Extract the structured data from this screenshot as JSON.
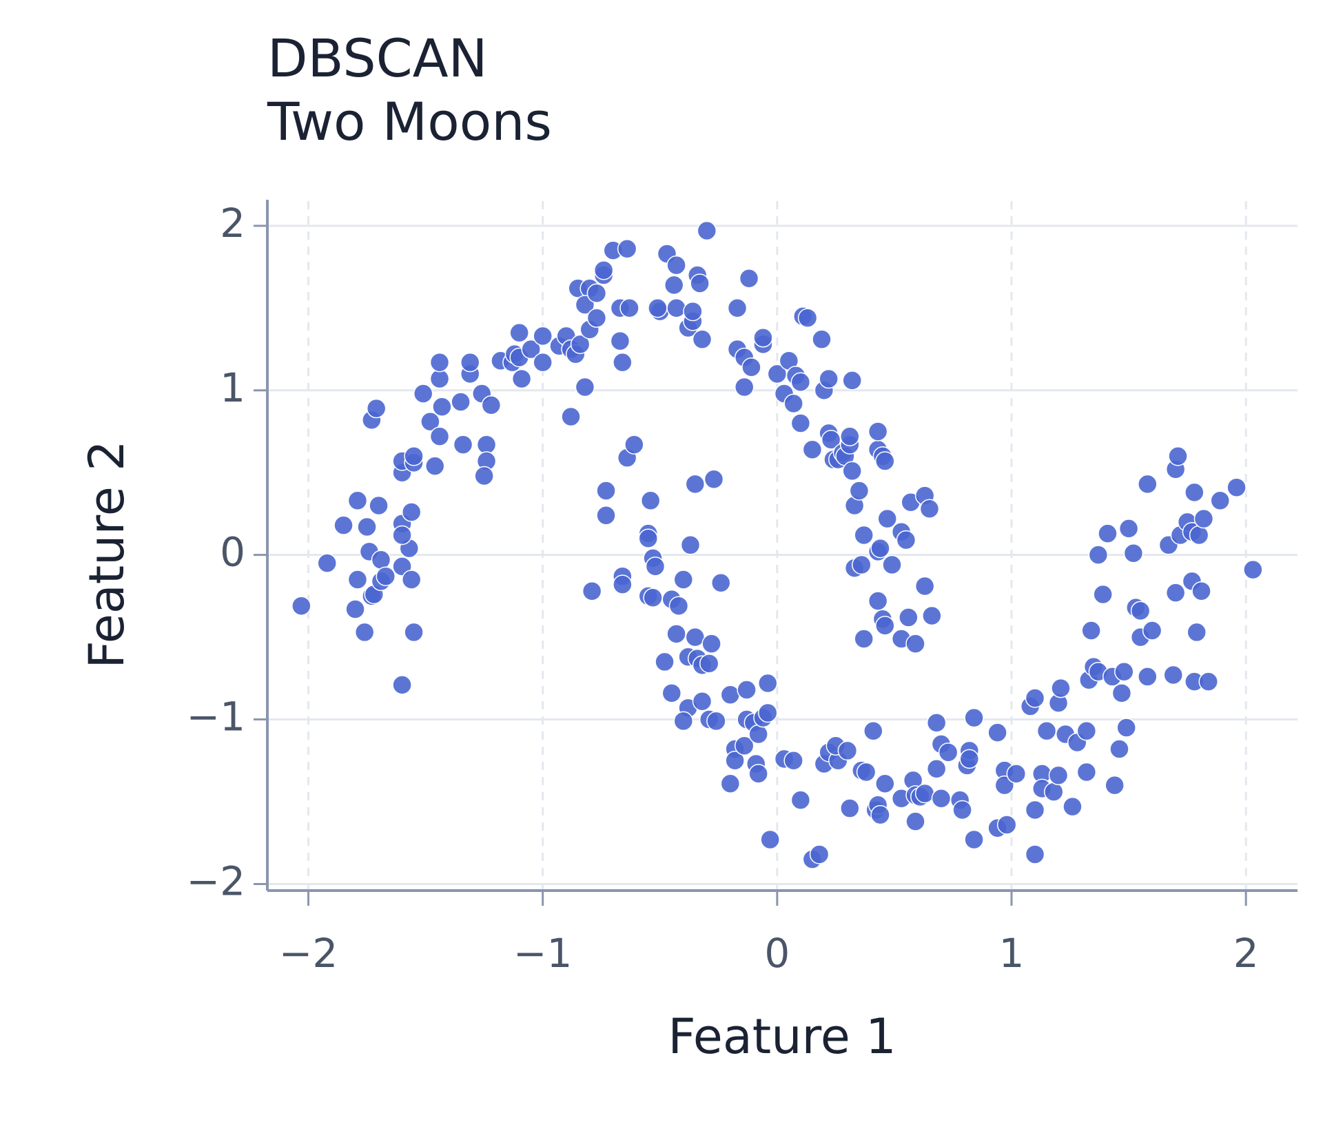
{
  "chart_data": {
    "type": "scatter",
    "title": "DBSCAN",
    "subtitle": "Two Moons",
    "x_label": "Feature 1",
    "y_label": "Feature 2",
    "color": "#4a66d0",
    "grid": true,
    "xlim": [
      -2.175,
      2.22
    ],
    "ylim": [
      -2.04,
      2.15
    ],
    "xticks": [
      {
        "value": -2,
        "label": "−2"
      },
      {
        "value": -1,
        "label": "−1"
      },
      0,
      1,
      2
    ],
    "yticks": [
      {
        "value": -2,
        "label": "−2"
      },
      {
        "value": -1,
        "label": "−1"
      },
      0,
      1,
      2
    ],
    "x": [
      -2.03,
      -1.92,
      -1.85,
      -1.79,
      -1.75,
      -1.74,
      -1.69,
      -1.79,
      -1.8,
      -1.76,
      -1.73,
      -1.72,
      -1.69,
      -1.67,
      -1.6,
      -1.57,
      -1.56,
      -1.55,
      -1.6,
      -1.7,
      -1.6,
      -1.6,
      -1.56,
      -1.73,
      -1.71,
      -1.6,
      -1.6,
      -1.55,
      -1.55,
      -1.51,
      -1.48,
      -1.46,
      -1.44,
      -1.43,
      -1.44,
      -1.44,
      -1.35,
      -1.34,
      -1.31,
      -1.31,
      -1.26,
      -1.22,
      -1.24,
      -1.24,
      -1.25,
      -1.18,
      -1.13,
      -1.12,
      -1.1,
      -1.1,
      -1.09,
      -1.05,
      -1.0,
      -1.0,
      -0.93,
      -0.9,
      -0.88,
      -0.86,
      -0.88,
      -0.82,
      -0.84,
      -0.8,
      -0.85,
      -0.8,
      -0.82,
      -0.77,
      -0.77,
      -0.74,
      -0.74,
      -0.7,
      -0.67,
      -0.67,
      -0.66,
      -0.63,
      -0.64,
      -0.5,
      -0.51,
      -0.47,
      -0.44,
      -0.43,
      -0.43,
      -0.38,
      -0.36,
      -0.36,
      -0.34,
      -0.33,
      -0.32,
      -0.3,
      -0.17,
      -0.17,
      -0.12,
      -0.14,
      -0.11,
      -0.14,
      -0.06,
      -0.06,
      0.0,
      0.03,
      0.05,
      0.07,
      0.08,
      0.1,
      0.1,
      0.11,
      0.13,
      0.15,
      0.19,
      0.2,
      0.22,
      0.22,
      0.23,
      0.24,
      0.26,
      0.28,
      0.29,
      0.31,
      0.31,
      0.32,
      0.32,
      0.33,
      0.35,
      0.37,
      0.33,
      0.36,
      0.43,
      0.43,
      0.45,
      0.46,
      0.43,
      0.44,
      0.47,
      0.49,
      0.43,
      0.45,
      0.46,
      0.53,
      0.55,
      0.57,
      0.53,
      0.56,
      0.59,
      0.63,
      0.65,
      0.63,
      0.66,
      0.37,
      -0.79,
      -0.73,
      -0.73,
      -0.66,
      -0.66,
      -0.64,
      -0.61,
      -0.54,
      -0.55,
      -0.55,
      -0.53,
      -0.52,
      -0.55,
      -0.53,
      -0.45,
      -0.42,
      -0.4,
      -0.43,
      -0.37,
      -0.35,
      -0.27,
      -0.24,
      -0.48,
      -0.45,
      -0.38,
      -0.35,
      -0.34,
      -0.32,
      -0.28,
      -0.29,
      -0.38,
      -0.4,
      -0.32,
      -0.29,
      -0.26,
      -0.2,
      -0.2,
      -0.18,
      -0.18,
      -0.14,
      -0.13,
      -0.13,
      -0.1,
      -0.09,
      -0.08,
      -0.08,
      -0.06,
      -0.04,
      -0.04,
      -0.03,
      0.03,
      0.07,
      0.1,
      0.15,
      0.18,
      0.2,
      0.22,
      0.26,
      0.25,
      0.3,
      0.31,
      0.36,
      0.38,
      0.41,
      0.42,
      0.43,
      0.44,
      0.46,
      0.53,
      0.58,
      0.59,
      0.59,
      0.61,
      0.63,
      0.68,
      0.68,
      0.7,
      0.7,
      0.73,
      0.78,
      0.79,
      0.81,
      0.82,
      0.82,
      0.84,
      0.84,
      0.94,
      0.94,
      0.97,
      0.97,
      0.98,
      1.02,
      1.1,
      1.1,
      1.08,
      1.1,
      1.13,
      1.13,
      1.15,
      1.18,
      1.2,
      1.2,
      1.21,
      1.23,
      1.26,
      1.28,
      1.32,
      1.32,
      1.33,
      1.35,
      1.34,
      1.37,
      1.37,
      1.39,
      1.41,
      1.43,
      1.44,
      1.46,
      1.47,
      1.48,
      1.49,
      1.5,
      1.52,
      1.53,
      1.55,
      1.55,
      1.58,
      1.58,
      1.6,
      1.67,
      1.69,
      1.7,
      1.7,
      1.71,
      1.72,
      1.75,
      1.77,
      1.78,
      1.77,
      1.78,
      1.79,
      1.8,
      1.82,
      1.81,
      1.84,
      1.89,
      1.96,
      2.03
    ],
    "values": [
      -0.31,
      -0.05,
      0.18,
      0.33,
      0.17,
      0.02,
      -0.03,
      -0.15,
      -0.33,
      -0.47,
      -0.25,
      -0.24,
      -0.16,
      -0.13,
      -0.07,
      0.04,
      -0.15,
      -0.47,
      -0.79,
      0.3,
      0.19,
      0.12,
      0.26,
      0.82,
      0.89,
      0.5,
      0.57,
      0.56,
      0.6,
      0.98,
      0.81,
      0.54,
      0.72,
      0.9,
      1.07,
      1.17,
      0.93,
      0.67,
      1.1,
      1.17,
      0.98,
      0.91,
      0.67,
      0.57,
      0.48,
      1.18,
      1.17,
      1.22,
      1.35,
      1.2,
      1.07,
      1.25,
      1.17,
      1.33,
      1.27,
      1.33,
      1.25,
      1.22,
      0.84,
      1.02,
      1.28,
      1.37,
      1.62,
      1.62,
      1.52,
      1.44,
      1.59,
      1.7,
      1.73,
      1.85,
      1.5,
      1.3,
      1.17,
      1.5,
      1.86,
      1.48,
      1.5,
      1.83,
      1.64,
      1.76,
      1.5,
      1.38,
      1.42,
      1.48,
      1.7,
      1.65,
      1.31,
      1.97,
      1.5,
      1.25,
      1.68,
      1.2,
      1.14,
      1.02,
      1.28,
      1.32,
      1.1,
      0.98,
      1.18,
      0.92,
      1.09,
      1.05,
      0.8,
      1.45,
      1.44,
      0.64,
      1.31,
      1.0,
      1.07,
      0.74,
      0.7,
      0.58,
      0.58,
      0.62,
      0.6,
      0.67,
      0.72,
      0.51,
      1.06,
      0.3,
      0.39,
      0.12,
      -0.08,
      -0.06,
      0.64,
      0.75,
      0.6,
      0.57,
      0.02,
      0.04,
      0.22,
      -0.06,
      -0.28,
      -0.39,
      -0.43,
      0.14,
      0.09,
      0.32,
      -0.51,
      -0.38,
      -0.54,
      0.36,
      0.28,
      -0.19,
      -0.37,
      -0.51,
      -0.22,
      0.24,
      0.39,
      -0.13,
      -0.18,
      0.59,
      0.67,
      0.33,
      0.13,
      0.1,
      -0.02,
      -0.07,
      -0.25,
      -0.26,
      -0.27,
      -0.31,
      -0.15,
      -0.48,
      0.06,
      0.43,
      0.46,
      -0.17,
      -0.65,
      -0.84,
      -0.62,
      -0.5,
      -0.63,
      -0.67,
      -0.54,
      -0.66,
      -0.93,
      -1.01,
      -0.89,
      -1.0,
      -1.01,
      -0.85,
      -1.39,
      -1.18,
      -1.25,
      -1.16,
      -0.82,
      -1.0,
      -1.02,
      -1.27,
      -1.33,
      -1.09,
      -0.99,
      -0.96,
      -0.78,
      -1.73,
      -1.24,
      -1.25,
      -1.49,
      -1.85,
      -1.82,
      -1.27,
      -1.2,
      -1.25,
      -1.16,
      -1.19,
      -1.54,
      -1.31,
      -1.32,
      -1.07,
      -1.55,
      -1.52,
      -1.58,
      -1.39,
      -1.48,
      -1.37,
      -1.46,
      -1.62,
      -1.47,
      -1.45,
      -1.02,
      -1.3,
      -1.15,
      -1.48,
      -1.2,
      -1.49,
      -1.55,
      -1.28,
      -1.19,
      -1.24,
      -1.73,
      -0.99,
      -1.66,
      -1.08,
      -1.31,
      -1.4,
      -1.64,
      -1.33,
      -1.55,
      -1.82,
      -0.92,
      -0.87,
      -1.33,
      -1.42,
      -1.07,
      -1.44,
      -1.34,
      -0.9,
      -0.81,
      -1.09,
      -1.53,
      -1.14,
      -1.32,
      -1.07,
      -0.76,
      -0.68,
      -0.46,
      -0.71,
      0.0,
      -0.24,
      0.13,
      -0.74,
      -1.4,
      -1.18,
      -0.84,
      -0.71,
      -1.05,
      0.16,
      0.01,
      -0.32,
      -0.34,
      -0.5,
      0.43,
      -0.74,
      -0.46,
      0.06,
      -0.73,
      -0.23,
      0.52,
      0.6,
      0.12,
      0.2,
      0.14,
      0.38,
      -0.16,
      -0.77,
      -0.47,
      0.12,
      0.22,
      -0.22,
      -0.77,
      0.33,
      0.41,
      -0.09
    ]
  }
}
